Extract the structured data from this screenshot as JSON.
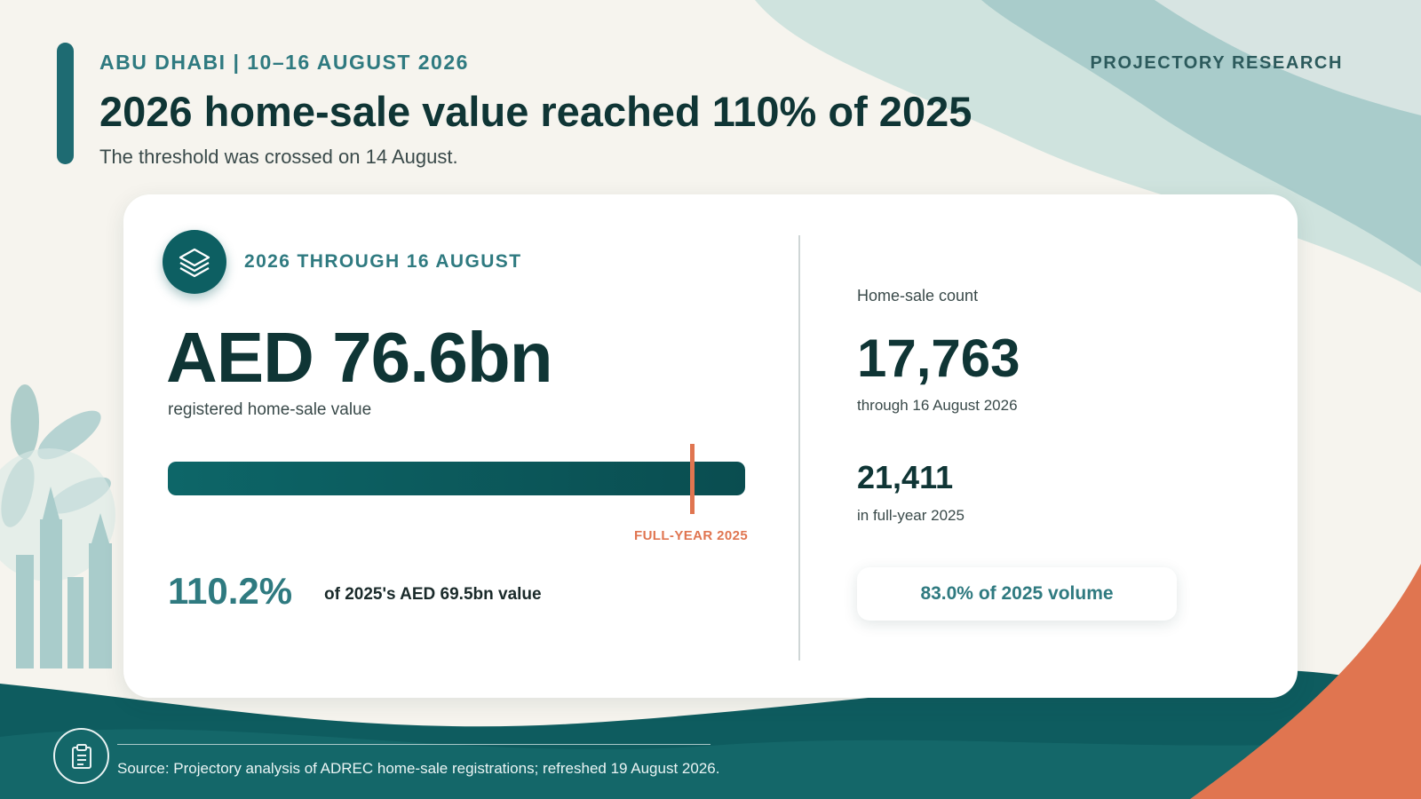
{
  "header": {
    "kicker": "ABU DHABI | 10–16 AUGUST 2026",
    "brand": "PROJECTORY RESEARCH",
    "title": "2026 home-sale value reached 110% of 2025",
    "subtitle": "The threshold was crossed on 14 August."
  },
  "card": {
    "section_label": "2026 THROUGH 16 AUGUST",
    "badge_icon": "layers-icon",
    "value": {
      "amount": "AED 76.6bn",
      "caption": "registered home-sale value"
    },
    "progress": {
      "fraction_of_track": 1.0,
      "marker_fraction": 0.907,
      "marker_label": "FULL-YEAR 2025"
    },
    "percent": {
      "value": "110.2%",
      "caption": "of 2025's AED 69.5bn value"
    },
    "count": {
      "label": "Home-sale count",
      "value": "17,763",
      "caption": "through 16 August 2026",
      "prior_value": "21,411",
      "prior_caption": "in full-year 2025",
      "volume_pill": "83.0% of 2025 volume"
    }
  },
  "footer": {
    "icon": "clipboard-icon",
    "source": "Source: Projectory analysis of ADREC home-sale registrations; refreshed 19 August 2026."
  },
  "colors": {
    "accent": "#1e6b72",
    "dark_teal": "#0d5f62",
    "marker": "#e07550",
    "background": "#f6f4ee"
  }
}
